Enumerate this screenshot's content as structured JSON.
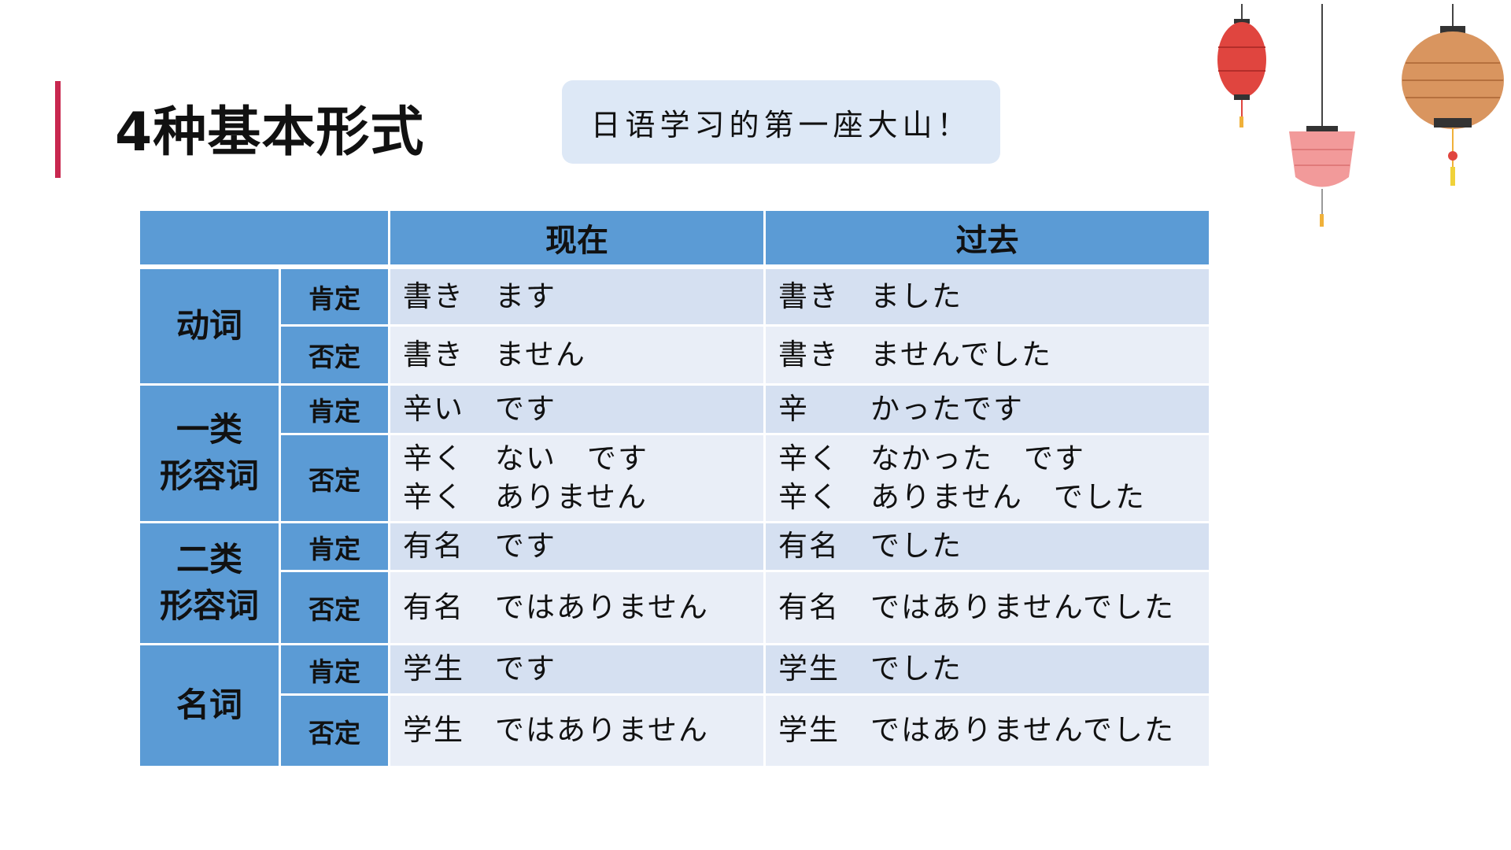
{
  "title": "4种基本形式",
  "subtitle": "日语学习的第一座大山！",
  "table": {
    "headers": [
      "",
      "现在",
      "过去"
    ],
    "groups": [
      {
        "category": "动词",
        "rows": [
          {
            "label": "肯定",
            "present": "書き　ます",
            "past": "書き　ました"
          },
          {
            "label": "否定",
            "present": "書き　ません",
            "past": "書き　ませんでした"
          }
        ]
      },
      {
        "category": "一类\n形容词",
        "rows": [
          {
            "label": "肯定",
            "present": "辛い　です",
            "past": "辛　　かったです"
          },
          {
            "label": "否定",
            "present": "辛く　ない　です\n辛く　ありません",
            "past": "辛く　なかった　です\n辛く　ありません　でした"
          }
        ]
      },
      {
        "category": "二类\n形容词",
        "rows": [
          {
            "label": "肯定",
            "present": "有名　です",
            "past": "有名　でした"
          },
          {
            "label": "否定",
            "present": "有名　ではありません",
            "past": "有名　ではありませんでした"
          }
        ]
      },
      {
        "category": "名词",
        "rows": [
          {
            "label": "肯定",
            "present": "学生　です",
            "past": "学生　でした"
          },
          {
            "label": "否定",
            "present": "学生　ではありません",
            "past": "学生　ではありませんでした"
          }
        ]
      }
    ]
  },
  "colors": {
    "header": "#5b9bd5",
    "accent": "#c8284f",
    "row_pos": "#d5e0f1",
    "row_neg": "#e9eef7",
    "bubble": "#dde8f6"
  },
  "decorations": [
    "red-lantern-icon",
    "pink-lantern-icon",
    "orange-lantern-icon"
  ]
}
